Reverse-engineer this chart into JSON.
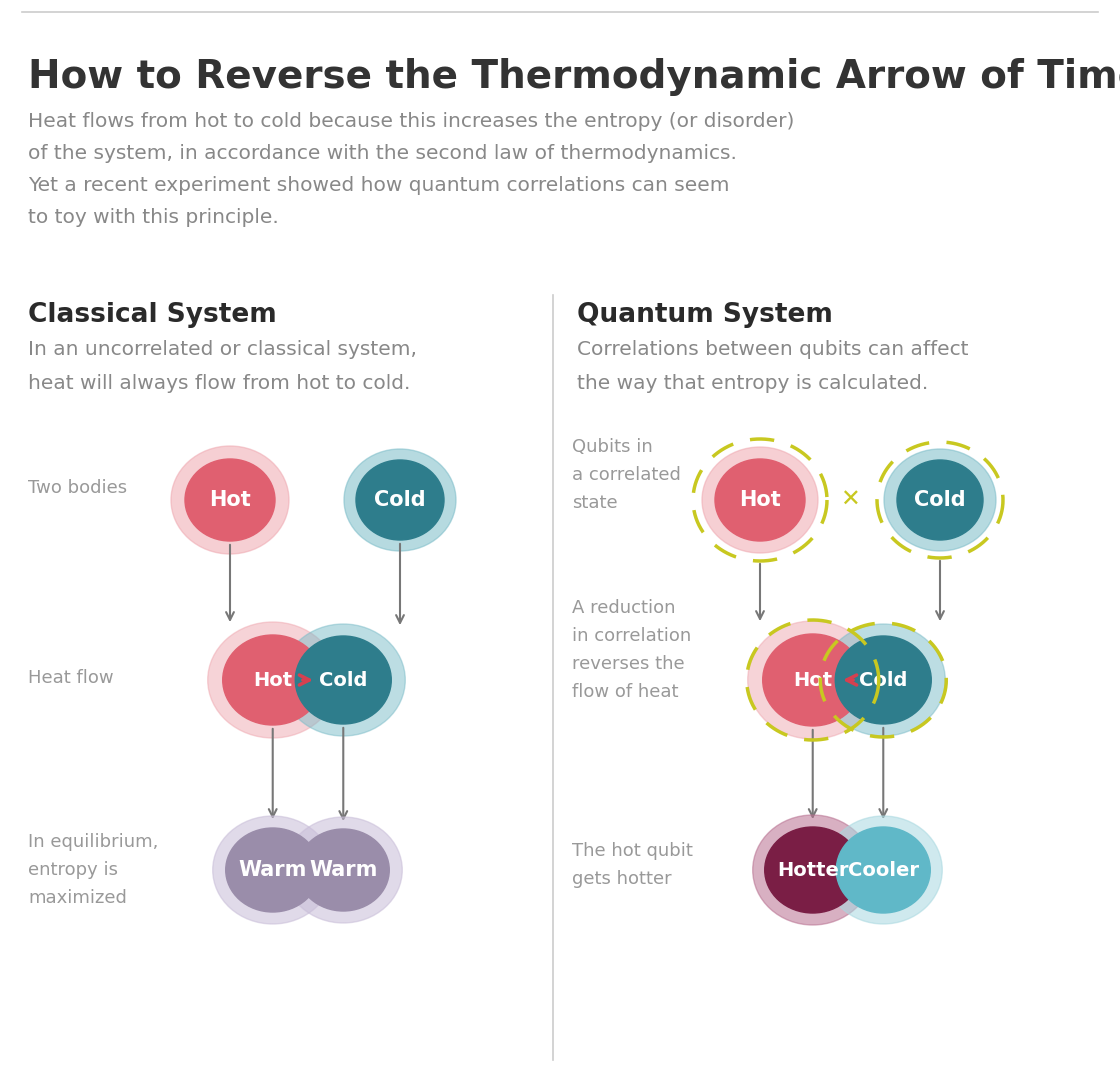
{
  "title": "How to Reverse the Thermodynamic Arrow of Time",
  "subtitle_lines": [
    "Heat flows from hot to cold because this increases the entropy (or disorder)",
    "of the system, in accordance with the second law of thermodynamics.",
    "Yet a recent experiment showed how quantum correlations can seem",
    "to toy with this principle."
  ],
  "classical_title": "Classical System",
  "classical_desc_lines": [
    "In an uncorrelated or classical system,",
    "heat will always flow from hot to cold."
  ],
  "quantum_title": "Quantum System",
  "quantum_desc_lines": [
    "Correlations between qubits can affect",
    "the way that entropy is calculated."
  ],
  "label_two_bodies": "Two bodies",
  "label_heat_flow": "Heat flow",
  "label_equilibrium": "In equilibrium,\nentropy is\nmaximized",
  "label_qubits_correlated": "Qubits in\na correlated\nstate",
  "label_reduction": "A reduction\nin correlation\nreverses the\nflow of heat",
  "label_hot_qubit": "The hot qubit\ngets hotter",
  "hot_color": "#E06070",
  "hot_glow": "#EFA8B0",
  "cold_color": "#2E7D8C",
  "cold_glow": "#7BBCC8",
  "warm_color": "#9A8DAA",
  "warm_glow": "#C8BDD8",
  "hotter_color": "#7A1E45",
  "hotter_glow": "#B87090",
  "cooler_color": "#60B8C8",
  "cooler_glow": "#A8D8E0",
  "flow_arrow_color": "#777777",
  "heat_arrow_color": "#D64050",
  "dashed_color": "#C8C820",
  "bg_color": "#FFFFFF",
  "title_color": "#333333",
  "subtitle_color": "#888888",
  "section_title_color": "#2A2A2A",
  "label_color": "#999999",
  "divider_color": "#CCCCCC"
}
